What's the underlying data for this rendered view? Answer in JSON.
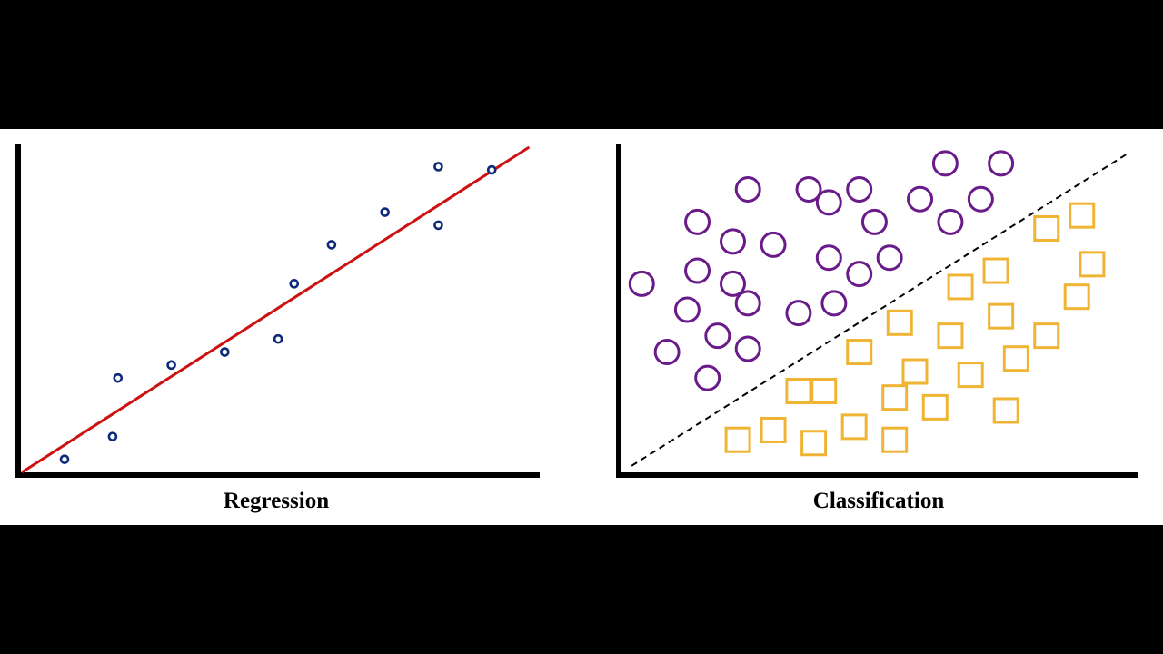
{
  "panels": {
    "regression": {
      "caption": "Regression",
      "points": [
        {
          "x": 0.8,
          "y": 0.4
        },
        {
          "x": 1.7,
          "y": 1.1
        },
        {
          "x": 1.8,
          "y": 2.9
        },
        {
          "x": 2.8,
          "y": 3.3
        },
        {
          "x": 3.8,
          "y": 3.7
        },
        {
          "x": 4.8,
          "y": 4.1
        },
        {
          "x": 5.1,
          "y": 5.8
        },
        {
          "x": 5.8,
          "y": 7.0
        },
        {
          "x": 6.8,
          "y": 8.0
        },
        {
          "x": 7.8,
          "y": 7.6
        },
        {
          "x": 7.8,
          "y": 9.4
        },
        {
          "x": 8.8,
          "y": 9.3
        }
      ],
      "fit_line": {
        "x0": 0,
        "y0": 0,
        "x1": 9.5,
        "y1": 10.0
      },
      "xlim": [
        0,
        9.8
      ],
      "ylim": [
        0,
        10
      ],
      "colors": {
        "points": "#0d2a7a",
        "fit_line": "#cc1111",
        "axes": "#000000"
      }
    },
    "classification": {
      "caption": "Classification",
      "class_a": [
        {
          "x": 0.4,
          "y": 5.8
        },
        {
          "x": 0.9,
          "y": 3.7
        },
        {
          "x": 1.3,
          "y": 5.0
        },
        {
          "x": 1.5,
          "y": 7.7
        },
        {
          "x": 1.5,
          "y": 6.2
        },
        {
          "x": 1.7,
          "y": 2.9
        },
        {
          "x": 1.9,
          "y": 4.2
        },
        {
          "x": 2.2,
          "y": 7.1
        },
        {
          "x": 2.2,
          "y": 5.8
        },
        {
          "x": 2.5,
          "y": 8.7
        },
        {
          "x": 2.5,
          "y": 5.2
        },
        {
          "x": 2.5,
          "y": 3.8
        },
        {
          "x": 3.0,
          "y": 7.0
        },
        {
          "x": 3.5,
          "y": 4.9
        },
        {
          "x": 3.7,
          "y": 8.7
        },
        {
          "x": 4.1,
          "y": 8.3
        },
        {
          "x": 4.1,
          "y": 6.6
        },
        {
          "x": 4.2,
          "y": 5.2
        },
        {
          "x": 4.7,
          "y": 8.7
        },
        {
          "x": 4.7,
          "y": 6.1
        },
        {
          "x": 5.0,
          "y": 7.7
        },
        {
          "x": 5.3,
          "y": 6.6
        },
        {
          "x": 5.9,
          "y": 8.4
        },
        {
          "x": 6.4,
          "y": 9.5
        },
        {
          "x": 6.5,
          "y": 7.7
        },
        {
          "x": 7.1,
          "y": 8.4
        },
        {
          "x": 7.5,
          "y": 9.5
        }
      ],
      "class_b": [
        {
          "x": 2.3,
          "y": 1.0
        },
        {
          "x": 3.0,
          "y": 1.3
        },
        {
          "x": 3.5,
          "y": 2.5
        },
        {
          "x": 3.8,
          "y": 0.9
        },
        {
          "x": 4.0,
          "y": 2.5
        },
        {
          "x": 4.6,
          "y": 1.4
        },
        {
          "x": 4.7,
          "y": 3.7
        },
        {
          "x": 5.4,
          "y": 1.0
        },
        {
          "x": 5.4,
          "y": 2.3
        },
        {
          "x": 5.5,
          "y": 4.6
        },
        {
          "x": 5.8,
          "y": 3.1
        },
        {
          "x": 6.2,
          "y": 2.0
        },
        {
          "x": 6.5,
          "y": 4.2
        },
        {
          "x": 6.7,
          "y": 5.7
        },
        {
          "x": 6.9,
          "y": 3.0
        },
        {
          "x": 7.4,
          "y": 6.2
        },
        {
          "x": 7.5,
          "y": 4.8
        },
        {
          "x": 7.6,
          "y": 1.9
        },
        {
          "x": 7.8,
          "y": 3.5
        },
        {
          "x": 8.4,
          "y": 4.2
        },
        {
          "x": 8.4,
          "y": 7.5
        },
        {
          "x": 9.0,
          "y": 5.4
        },
        {
          "x": 9.1,
          "y": 7.9
        },
        {
          "x": 9.3,
          "y": 6.4
        }
      ],
      "decision_boundary": {
        "x0": 0.2,
        "y0": 0.2,
        "x1": 10.0,
        "y1": 9.8
      },
      "xlim": [
        0,
        10.2
      ],
      "ylim": [
        0,
        10
      ],
      "colors": {
        "class_a": "#6a1b8a",
        "class_b": "#f0b435",
        "boundary": "#000000",
        "axes": "#000000"
      }
    }
  }
}
